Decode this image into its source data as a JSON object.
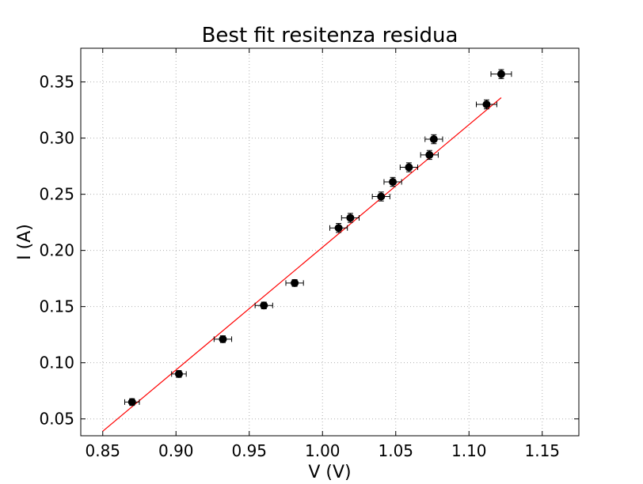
{
  "chart_data": {
    "type": "scatter",
    "title": "Best fit resitenza residua",
    "xlabel": "V (V)",
    "ylabel": "I (A)",
    "xlim": [
      0.835,
      1.175
    ],
    "ylim": [
      0.035,
      0.38
    ],
    "xticks": [
      "0.85",
      "0.90",
      "0.95",
      "1.00",
      "1.05",
      "1.10",
      "1.15"
    ],
    "yticks": [
      "0.05",
      "0.10",
      "0.15",
      "0.20",
      "0.25",
      "0.30",
      "0.35"
    ],
    "grid": true,
    "series": [
      {
        "kind": "points-with-errorbars",
        "color": "#000000",
        "points": [
          {
            "x": 0.87,
            "y": 0.065,
            "xerr": 0.005,
            "yerr": 0.003
          },
          {
            "x": 0.902,
            "y": 0.09,
            "xerr": 0.005,
            "yerr": 0.003
          },
          {
            "x": 0.932,
            "y": 0.121,
            "xerr": 0.006,
            "yerr": 0.003
          },
          {
            "x": 0.96,
            "y": 0.151,
            "xerr": 0.006,
            "yerr": 0.003
          },
          {
            "x": 0.981,
            "y": 0.171,
            "xerr": 0.006,
            "yerr": 0.003
          },
          {
            "x": 1.011,
            "y": 0.22,
            "xerr": 0.006,
            "yerr": 0.004
          },
          {
            "x": 1.019,
            "y": 0.229,
            "xerr": 0.006,
            "yerr": 0.004
          },
          {
            "x": 1.04,
            "y": 0.248,
            "xerr": 0.006,
            "yerr": 0.004
          },
          {
            "x": 1.048,
            "y": 0.261,
            "xerr": 0.006,
            "yerr": 0.004
          },
          {
            "x": 1.059,
            "y": 0.274,
            "xerr": 0.006,
            "yerr": 0.004
          },
          {
            "x": 1.073,
            "y": 0.285,
            "xerr": 0.006,
            "yerr": 0.004
          },
          {
            "x": 1.076,
            "y": 0.299,
            "xerr": 0.006,
            "yerr": 0.004
          },
          {
            "x": 1.112,
            "y": 0.33,
            "xerr": 0.007,
            "yerr": 0.004
          },
          {
            "x": 1.122,
            "y": 0.357,
            "xerr": 0.007,
            "yerr": 0.004
          }
        ]
      },
      {
        "kind": "fit-line",
        "color": "#ff0000",
        "x": [
          0.85,
          1.122
        ],
        "y": [
          0.039,
          0.336
        ]
      }
    ]
  }
}
